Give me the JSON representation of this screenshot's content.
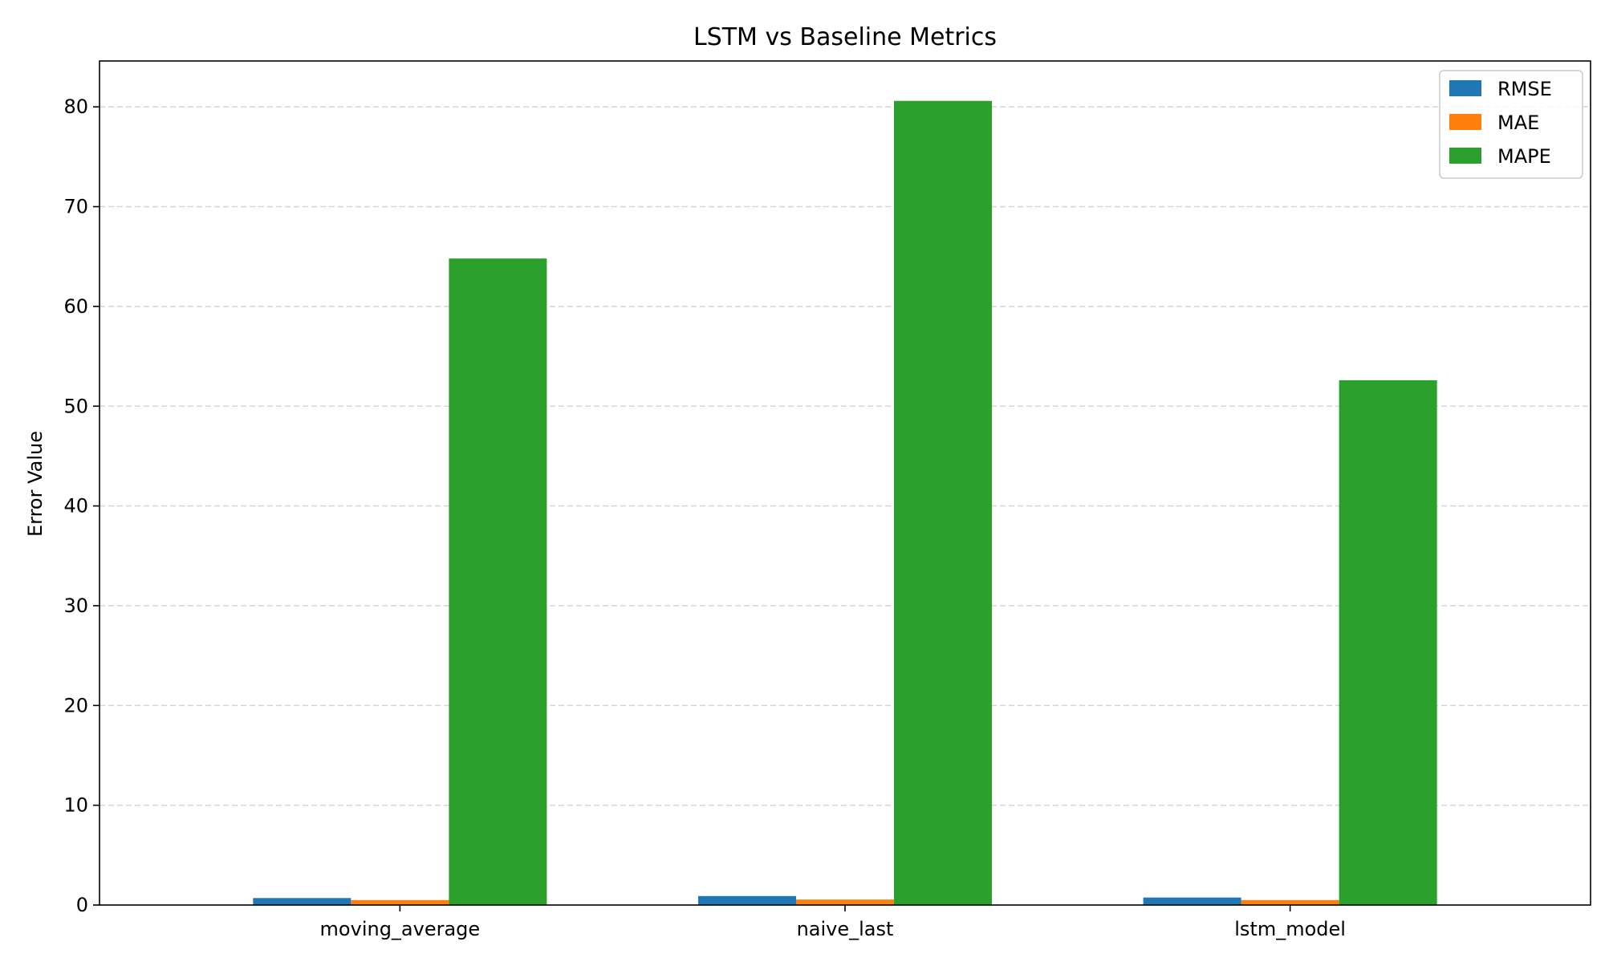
{
  "chart_data": {
    "type": "bar",
    "title": "LSTM vs Baseline Metrics",
    "xlabel": "",
    "ylabel": "Error Value",
    "categories": [
      "moving_average",
      "naive_last",
      "lstm_model"
    ],
    "series": [
      {
        "name": "RMSE",
        "color": "#1f77b4",
        "values": [
          0.7,
          0.9,
          0.75
        ]
      },
      {
        "name": "MAE",
        "color": "#ff7f0e",
        "values": [
          0.5,
          0.55,
          0.5
        ]
      },
      {
        "name": "MAPE",
        "color": "#2ca02c",
        "values": [
          64.8,
          80.6,
          52.6
        ]
      }
    ],
    "ylim": [
      0,
      84.6
    ],
    "yticks": [
      0,
      10,
      20,
      30,
      40,
      50,
      60,
      70,
      80
    ],
    "grid": "y-dashed",
    "legend_position": "top-right"
  }
}
